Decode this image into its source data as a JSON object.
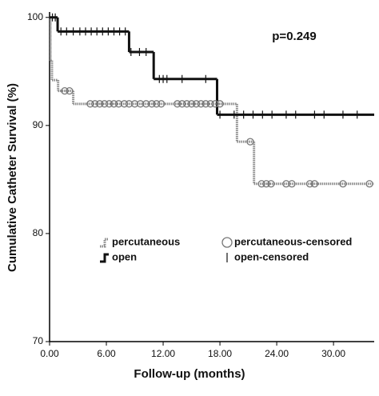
{
  "chart_data": {
    "type": "step",
    "xlabel": "Follow-up (months)",
    "ylabel": "Cumulative Catheter Survival (%)",
    "annotation": "p=0.249",
    "xlim": [
      0,
      34.3
    ],
    "ylim": [
      70,
      100.5
    ],
    "xticks": [
      {
        "value": 0,
        "label": "0.00"
      },
      {
        "value": 6,
        "label": "6.00"
      },
      {
        "value": 12,
        "label": "12.00"
      },
      {
        "value": 18,
        "label": "18.00"
      },
      {
        "value": 24,
        "label": "24.00"
      },
      {
        "value": 30,
        "label": "30.00"
      }
    ],
    "yticks": [
      70,
      80,
      90,
      100
    ],
    "series": [
      {
        "name": "percutaneous",
        "color": "#888888",
        "style": "dotted",
        "x": [
          0,
          0.1,
          0.25,
          0.9,
          2.5,
          19.8,
          21.6,
          34.3
        ],
        "values": [
          100,
          96.0,
          94.2,
          93.2,
          92.0,
          88.5,
          84.6,
          84.6
        ]
      },
      {
        "name": "open",
        "color": "#111111",
        "style": "solid",
        "x": [
          0,
          0.85,
          8.4,
          11.0,
          17.7,
          34.3
        ],
        "values": [
          100,
          98.7,
          96.8,
          94.3,
          91.0,
          91.0
        ]
      },
      {
        "name": "percutaneous-censored",
        "color": "#777777",
        "marker": "circle",
        "x": [
          1.6,
          2.1,
          4.3,
          4.8,
          5.3,
          5.8,
          6.3,
          6.8,
          7.3,
          7.9,
          8.4,
          9.0,
          9.6,
          10.2,
          10.8,
          11.3,
          11.8,
          13.5,
          14.0,
          14.5,
          15.0,
          15.5,
          16.0,
          16.5,
          17.0,
          17.5,
          18.0,
          21.2,
          22.4,
          22.9,
          23.4,
          25.0,
          25.6,
          27.5,
          28.0,
          31.0,
          33.8
        ],
        "values": [
          93.2,
          93.2,
          92,
          92,
          92,
          92,
          92,
          92,
          92,
          92,
          92,
          92,
          92,
          92,
          92,
          92,
          92,
          92,
          92,
          92,
          92,
          92,
          92,
          92,
          92,
          92,
          92,
          88.5,
          84.6,
          84.6,
          84.6,
          84.6,
          84.6,
          84.6,
          84.6,
          84.6,
          84.6
        ]
      },
      {
        "name": "open-censored",
        "color": "#111111",
        "marker": "tick",
        "x": [
          0.3,
          0.6,
          1.2,
          1.8,
          2.5,
          3.2,
          3.8,
          4.4,
          5.0,
          5.6,
          6.2,
          6.8,
          7.4,
          8.0,
          8.6,
          9.5,
          10.2,
          11.6,
          12.0,
          12.4,
          14.0,
          16.5,
          18.0,
          19.5,
          20.5,
          21.5,
          22.5,
          23.5,
          25.0,
          26.0,
          28.0,
          29.0,
          31.0,
          32.5
        ],
        "values": [
          100,
          100,
          98.7,
          98.7,
          98.7,
          98.7,
          98.7,
          98.7,
          98.7,
          98.7,
          98.7,
          98.7,
          98.7,
          98.7,
          96.8,
          96.8,
          96.8,
          94.3,
          94.3,
          94.3,
          94.3,
          94.3,
          91,
          91,
          91,
          91,
          91,
          91,
          91,
          91,
          91,
          91,
          91,
          91
        ]
      }
    ]
  }
}
